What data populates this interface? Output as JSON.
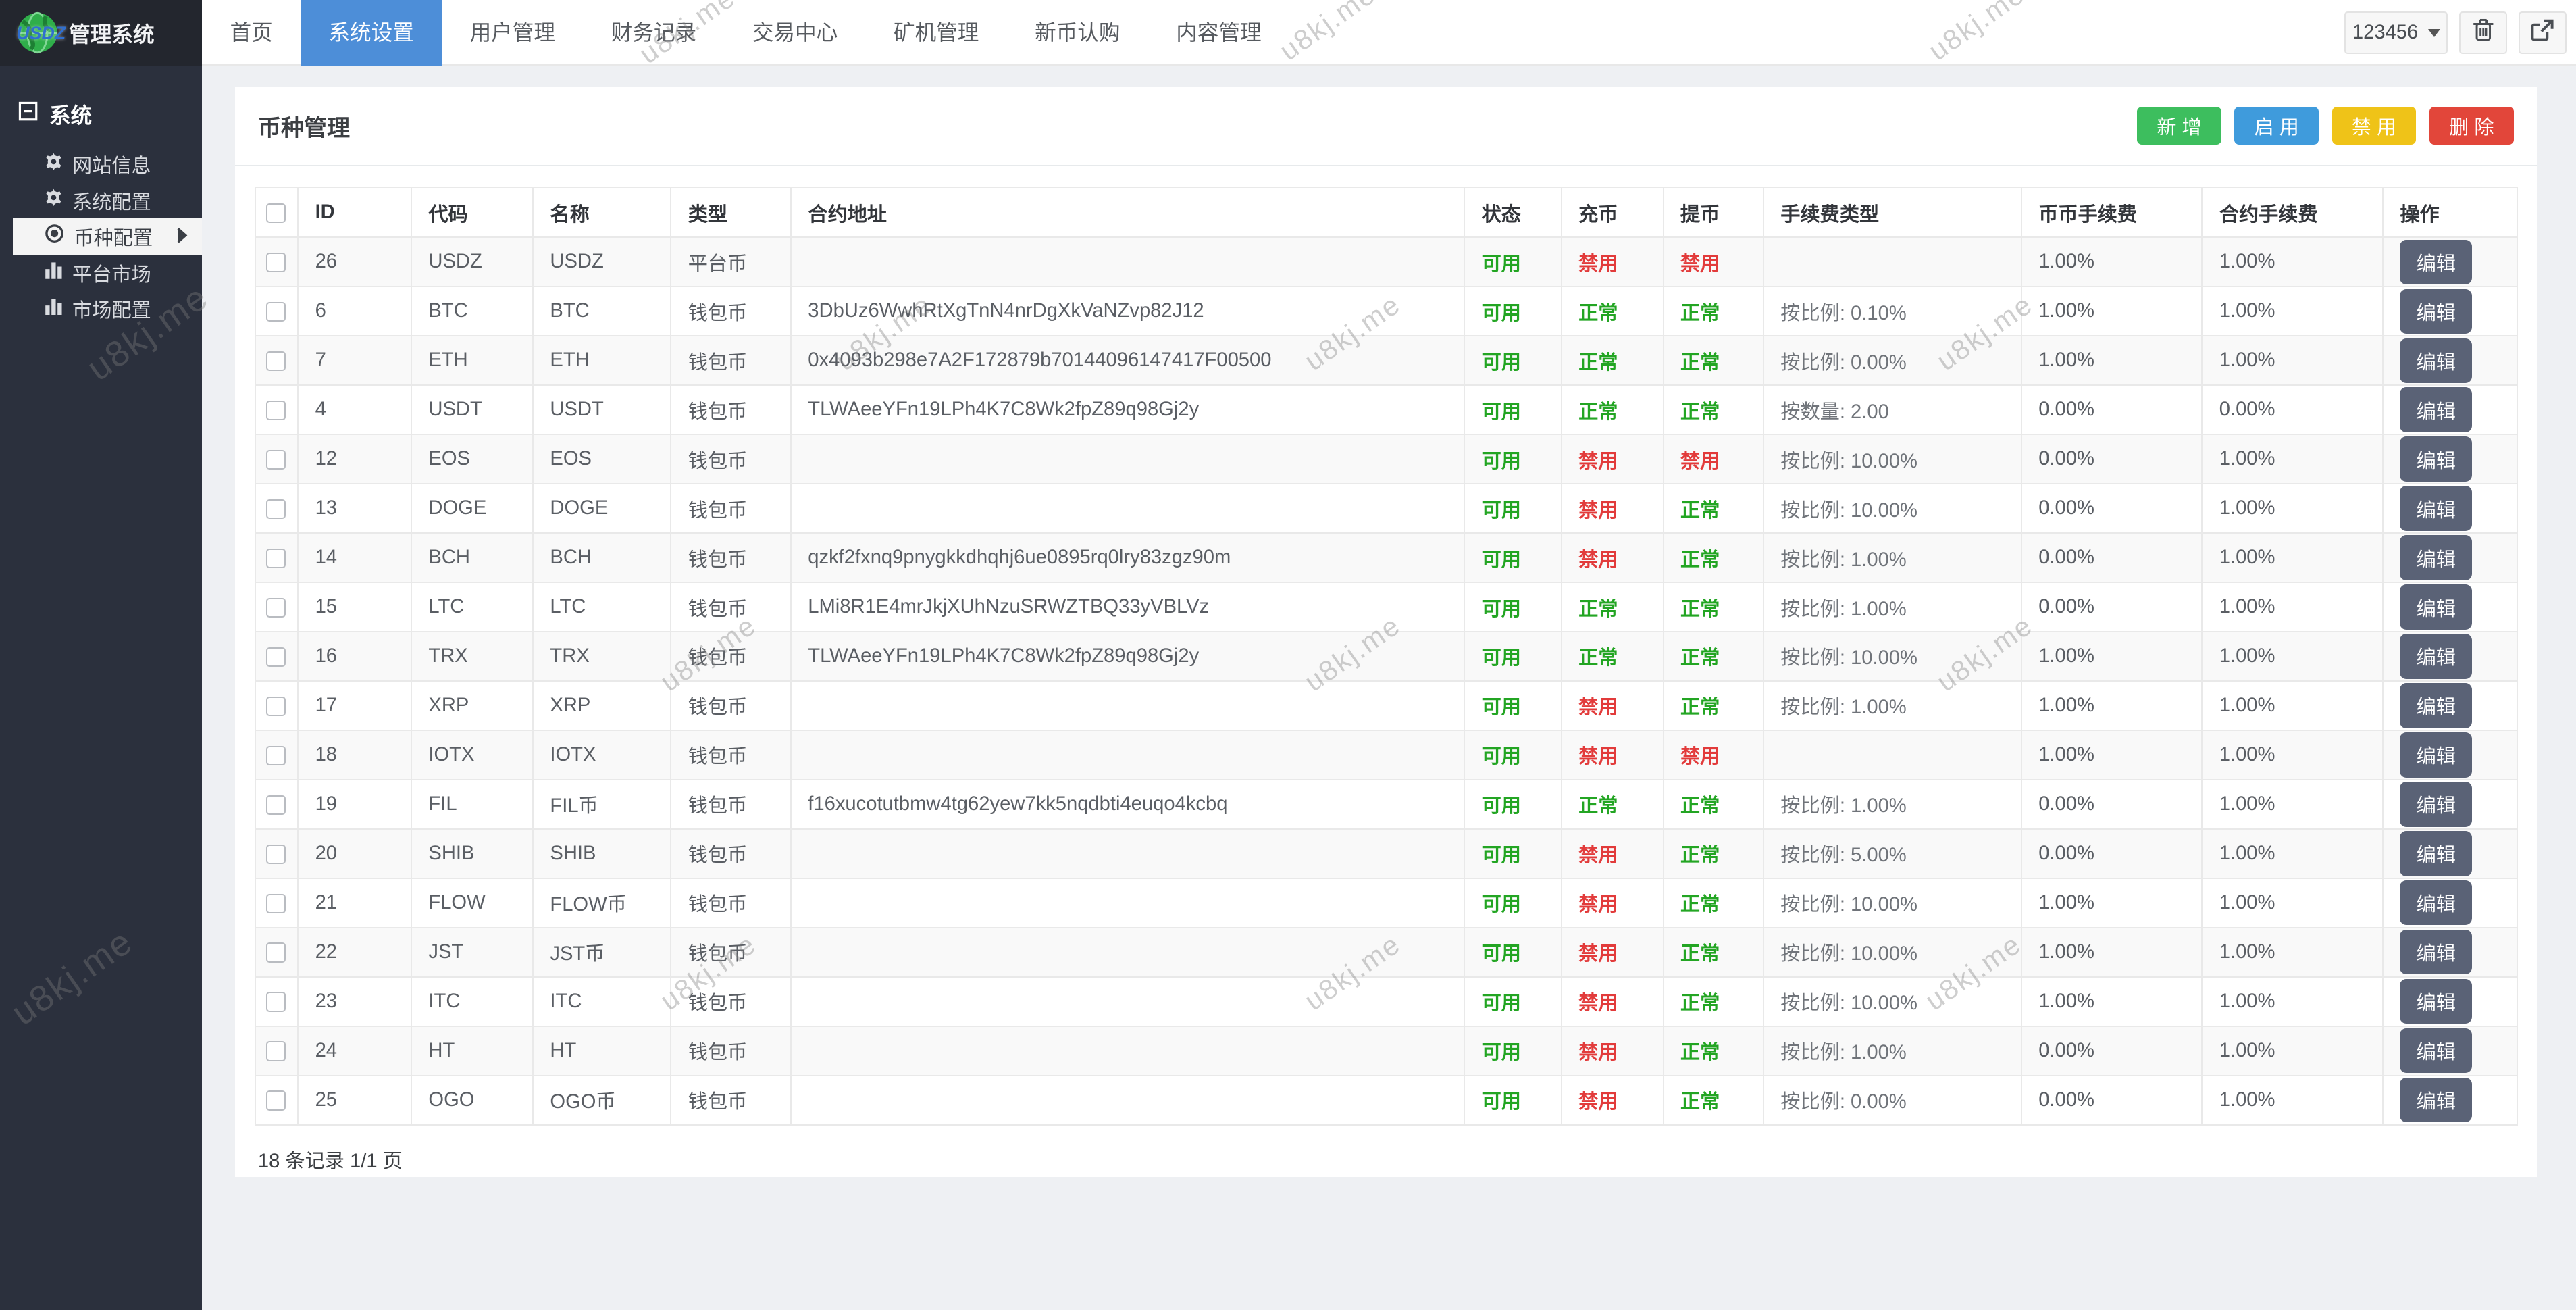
{
  "brand": {
    "logo_text": "USDZ",
    "title": "管理系统"
  },
  "topnav": {
    "items": [
      {
        "label": "首页",
        "active": false
      },
      {
        "label": "系统设置",
        "active": true
      },
      {
        "label": "用户管理",
        "active": false
      },
      {
        "label": "财务记录",
        "active": false
      },
      {
        "label": "交易中心",
        "active": false
      },
      {
        "label": "矿机管理",
        "active": false
      },
      {
        "label": "新币认购",
        "active": false
      },
      {
        "label": "内容管理",
        "active": false
      }
    ],
    "user": "123456"
  },
  "sidebar": {
    "section": {
      "label": "系统",
      "icon": "collapse-icon"
    },
    "items": [
      {
        "label": "网站信息",
        "icon": "gear-icon",
        "active": false
      },
      {
        "label": "系统配置",
        "icon": "gear-icon",
        "active": false
      },
      {
        "label": "币种配置",
        "icon": "target-icon",
        "active": true,
        "chevron": true
      },
      {
        "label": "平台市场",
        "icon": "chart-icon",
        "active": false
      },
      {
        "label": "市场配置",
        "icon": "chart-icon",
        "active": false
      }
    ]
  },
  "page": {
    "title": "币种管理",
    "footer": "18 条记录 1/1 页"
  },
  "toolbar": {
    "buttons": [
      {
        "label": "新 增",
        "key": "add"
      },
      {
        "label": "启 用",
        "key": "enable"
      },
      {
        "label": "禁 用",
        "key": "disable"
      },
      {
        "label": "删 除",
        "key": "delete"
      }
    ]
  },
  "colors": {
    "add": "#3dbe5e",
    "enable": "#3f9bdc",
    "disable": "#efc318",
    "delete": "#e2463a",
    "status_green": "#23a523",
    "status_red": "#e23b3b",
    "accent_blue": "#4d8ed8"
  },
  "table": {
    "headers": [
      "ID",
      "代码",
      "名称",
      "类型",
      "合约地址",
      "状态",
      "充币",
      "提币",
      "手续费类型",
      "币币手续费",
      "合约手续费",
      "操作"
    ],
    "edit_label": "编辑",
    "rows": [
      {
        "id": "26",
        "code": "USDZ",
        "name": "USDZ",
        "type": "平台币",
        "contract": "",
        "status": "可用",
        "deposit": "禁用",
        "withdraw": "禁用",
        "fee_type": "",
        "coin_fee": "1.00%",
        "contract_fee": "1.00%"
      },
      {
        "id": "6",
        "code": "BTC",
        "name": "BTC",
        "type": "钱包币",
        "contract": "3DbUz6WwhRtXgTnN4nrDgXkVaNZvp82J12",
        "status": "可用",
        "deposit": "正常",
        "withdraw": "正常",
        "fee_type": "按比例: 0.10%",
        "coin_fee": "1.00%",
        "contract_fee": "1.00%"
      },
      {
        "id": "7",
        "code": "ETH",
        "name": "ETH",
        "type": "钱包币",
        "contract": "0x4093b298e7A2F172879b70144096147417F00500",
        "status": "可用",
        "deposit": "正常",
        "withdraw": "正常",
        "fee_type": "按比例: 0.00%",
        "coin_fee": "1.00%",
        "contract_fee": "1.00%"
      },
      {
        "id": "4",
        "code": "USDT",
        "name": "USDT",
        "type": "钱包币",
        "contract": "TLWAeeYFn19LPh4K7C8Wk2fpZ89q98Gj2y",
        "status": "可用",
        "deposit": "正常",
        "withdraw": "正常",
        "fee_type": "按数量: 2.00",
        "coin_fee": "0.00%",
        "contract_fee": "0.00%"
      },
      {
        "id": "12",
        "code": "EOS",
        "name": "EOS",
        "type": "钱包币",
        "contract": "",
        "status": "可用",
        "deposit": "禁用",
        "withdraw": "禁用",
        "fee_type": "按比例: 10.00%",
        "coin_fee": "0.00%",
        "contract_fee": "1.00%"
      },
      {
        "id": "13",
        "code": "DOGE",
        "name": "DOGE",
        "type": "钱包币",
        "contract": "",
        "status": "可用",
        "deposit": "禁用",
        "withdraw": "正常",
        "fee_type": "按比例: 10.00%",
        "coin_fee": "0.00%",
        "contract_fee": "1.00%"
      },
      {
        "id": "14",
        "code": "BCH",
        "name": "BCH",
        "type": "钱包币",
        "contract": "qzkf2fxnq9pnygkkdhqhj6ue0895rq0lry83zgz90m",
        "status": "可用",
        "deposit": "禁用",
        "withdraw": "正常",
        "fee_type": "按比例: 1.00%",
        "coin_fee": "0.00%",
        "contract_fee": "1.00%"
      },
      {
        "id": "15",
        "code": "LTC",
        "name": "LTC",
        "type": "钱包币",
        "contract": "LMi8R1E4mrJkjXUhNzuSRWZTBQ33yVBLVz",
        "status": "可用",
        "deposit": "正常",
        "withdraw": "正常",
        "fee_type": "按比例: 1.00%",
        "coin_fee": "0.00%",
        "contract_fee": "1.00%"
      },
      {
        "id": "16",
        "code": "TRX",
        "name": "TRX",
        "type": "钱包币",
        "contract": "TLWAeeYFn19LPh4K7C8Wk2fpZ89q98Gj2y",
        "status": "可用",
        "deposit": "正常",
        "withdraw": "正常",
        "fee_type": "按比例: 10.00%",
        "coin_fee": "1.00%",
        "contract_fee": "1.00%"
      },
      {
        "id": "17",
        "code": "XRP",
        "name": "XRP",
        "type": "钱包币",
        "contract": "",
        "status": "可用",
        "deposit": "禁用",
        "withdraw": "正常",
        "fee_type": "按比例: 1.00%",
        "coin_fee": "1.00%",
        "contract_fee": "1.00%"
      },
      {
        "id": "18",
        "code": "IOTX",
        "name": "IOTX",
        "type": "钱包币",
        "contract": "",
        "status": "可用",
        "deposit": "禁用",
        "withdraw": "禁用",
        "fee_type": "",
        "coin_fee": "1.00%",
        "contract_fee": "1.00%"
      },
      {
        "id": "19",
        "code": "FIL",
        "name": "FIL币",
        "type": "钱包币",
        "contract": "f16xucotutbmw4tg62yew7kk5nqdbti4euqo4kcbq",
        "status": "可用",
        "deposit": "正常",
        "withdraw": "正常",
        "fee_type": "按比例: 1.00%",
        "coin_fee": "0.00%",
        "contract_fee": "1.00%"
      },
      {
        "id": "20",
        "code": "SHIB",
        "name": "SHIB",
        "type": "钱包币",
        "contract": "",
        "status": "可用",
        "deposit": "禁用",
        "withdraw": "正常",
        "fee_type": "按比例: 5.00%",
        "coin_fee": "0.00%",
        "contract_fee": "1.00%"
      },
      {
        "id": "21",
        "code": "FLOW",
        "name": "FLOW币",
        "type": "钱包币",
        "contract": "",
        "status": "可用",
        "deposit": "禁用",
        "withdraw": "正常",
        "fee_type": "按比例: 10.00%",
        "coin_fee": "1.00%",
        "contract_fee": "1.00%"
      },
      {
        "id": "22",
        "code": "JST",
        "name": "JST币",
        "type": "钱包币",
        "contract": "",
        "status": "可用",
        "deposit": "禁用",
        "withdraw": "正常",
        "fee_type": "按比例: 10.00%",
        "coin_fee": "1.00%",
        "contract_fee": "1.00%"
      },
      {
        "id": "23",
        "code": "ITC",
        "name": "ITC",
        "type": "钱包币",
        "contract": "",
        "status": "可用",
        "deposit": "禁用",
        "withdraw": "正常",
        "fee_type": "按比例: 10.00%",
        "coin_fee": "1.00%",
        "contract_fee": "1.00%"
      },
      {
        "id": "24",
        "code": "HT",
        "name": "HT",
        "type": "钱包币",
        "contract": "",
        "status": "可用",
        "deposit": "禁用",
        "withdraw": "正常",
        "fee_type": "按比例: 1.00%",
        "coin_fee": "0.00%",
        "contract_fee": "1.00%"
      },
      {
        "id": "25",
        "code": "OGO",
        "name": "OGO币",
        "type": "钱包币",
        "contract": "",
        "status": "可用",
        "deposit": "禁用",
        "withdraw": "正常",
        "fee_type": "按比例: 0.00%",
        "coin_fee": "0.00%",
        "contract_fee": "1.00%"
      }
    ]
  },
  "watermark": "u8kj.me"
}
